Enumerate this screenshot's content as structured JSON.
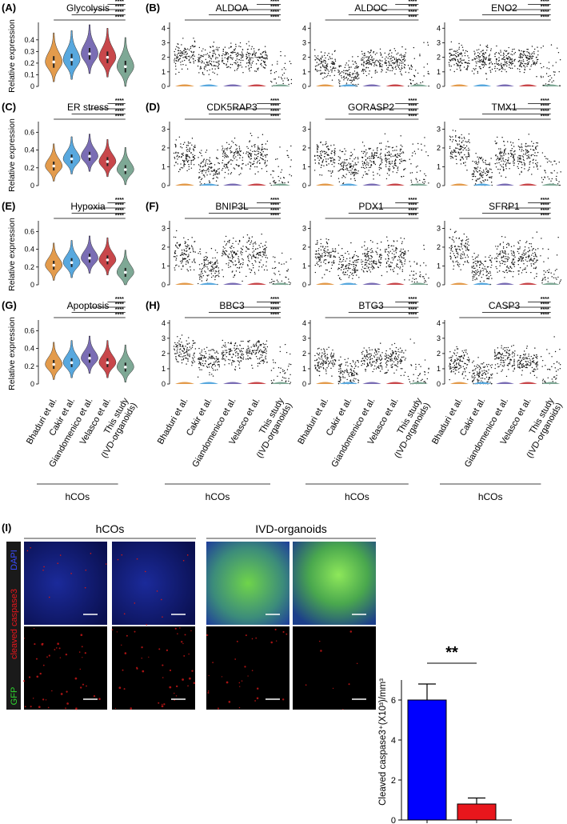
{
  "figure": {
    "colors": [
      "#e39b4c",
      "#58a8de",
      "#7a6db4",
      "#c8474b",
      "#7ea895"
    ],
    "groups": [
      [
        "Bhaduri et al."
      ],
      [
        "Cakir et al."
      ],
      [
        "Giandomenico et al."
      ],
      [
        "Velasco et al."
      ],
      [
        "This study",
        "(IVD-organoids)"
      ]
    ],
    "cohort_label": "hCOs",
    "sig": "****",
    "y_axis_label": "Relative expression",
    "rows": [
      {
        "module": {
          "label": "(A)",
          "title": "Glycolysis",
          "ylim": [
            0,
            0.55
          ],
          "yticks": [
            0,
            0.1,
            0.2,
            0.3,
            0.4
          ],
          "medians": [
            0.21,
            0.23,
            0.28,
            0.25,
            0.17
          ]
        },
        "genes": {
          "label": "(B)",
          "ylim": [
            0,
            4.4
          ],
          "yticks": [
            0,
            1,
            2,
            3,
            4
          ],
          "panels": [
            {
              "title": "ALDOA",
              "medians": [
                2.1,
                1.8,
                2.0,
                1.9,
                0.1
              ]
            },
            {
              "title": "ALDOC",
              "medians": [
                1.5,
                0.9,
                1.6,
                1.7,
                0.1
              ]
            },
            {
              "title": "ENO2",
              "medians": [
                1.9,
                1.8,
                1.8,
                1.9,
                0.3
              ]
            }
          ]
        }
      },
      {
        "module": {
          "label": "(C)",
          "title": "ER stress",
          "ylim": [
            0,
            0.72
          ],
          "yticks": [
            0,
            0.2,
            0.4,
            0.6
          ],
          "medians": [
            0.22,
            0.3,
            0.33,
            0.27,
            0.18
          ]
        },
        "genes": {
          "label": "(D)",
          "ylim": [
            0,
            3.4
          ],
          "yticks": [
            0,
            1,
            2,
            3
          ],
          "panels": [
            {
              "title": "CDK5RAP3",
              "medians": [
                1.6,
                0.9,
                1.5,
                1.6,
                0.3
              ]
            },
            {
              "title": "GORASP2",
              "medians": [
                1.5,
                1.0,
                1.4,
                1.5,
                0.3
              ]
            },
            {
              "title": "TMX1",
              "medians": [
                1.9,
                0.8,
                1.5,
                1.6,
                0.3
              ]
            }
          ]
        }
      },
      {
        "module": {
          "label": "(E)",
          "title": "Hypoxia",
          "ylim": [
            0,
            0.72
          ],
          "yticks": [
            0,
            0.2,
            0.4,
            0.6
          ],
          "medians": [
            0.22,
            0.25,
            0.3,
            0.28,
            0.14
          ]
        },
        "genes": {
          "label": "(F)",
          "ylim": [
            0,
            3.4
          ],
          "yticks": [
            0,
            1,
            2,
            3
          ],
          "panels": [
            {
              "title": "BNIP3L",
              "medians": [
                1.6,
                0.9,
                1.5,
                1.6,
                0.3
              ]
            },
            {
              "title": "PDX1",
              "medians": [
                1.6,
                1.0,
                1.4,
                1.5,
                0.3
              ]
            },
            {
              "title": "SFRP1",
              "medians": [
                1.8,
                0.8,
                1.5,
                1.5,
                0.3
              ]
            }
          ]
        }
      },
      {
        "module": {
          "label": "(G)",
          "title": "Apoptosis",
          "ylim": [
            0,
            0.72
          ],
          "yticks": [
            0,
            0.2,
            0.4,
            0.6
          ],
          "medians": [
            0.22,
            0.24,
            0.29,
            0.24,
            0.19
          ]
        },
        "genes": {
          "label": "(H)",
          "ylim": [
            0,
            4.2
          ],
          "yticks": [
            0,
            1,
            2,
            3,
            4
          ],
          "panels": [
            {
              "title": "BBC3",
              "medians": [
                2.1,
                1.6,
                2.0,
                2.1,
                0.4
              ]
            },
            {
              "title": "BTG3",
              "medians": [
                1.5,
                0.8,
                1.6,
                1.6,
                0.1
              ]
            },
            {
              "title": "CASP3",
              "medians": [
                1.4,
                0.6,
                1.7,
                1.4,
                0.2
              ]
            }
          ]
        }
      }
    ],
    "panel_i": {
      "label": "(I)",
      "groups": [
        "hCOs",
        "IVD-organoids"
      ],
      "channels": [
        "DAPI",
        "cleaved caspase3",
        "GFP"
      ],
      "chart": {
        "type": "bar",
        "ylabel": "Cleaved caspase3⁺(X10³)/mm³",
        "values": [
          6.0,
          0.8
        ],
        "errors": [
          0.8,
          0.3
        ],
        "colors": [
          "#0000ff",
          "#e8161c"
        ],
        "ylim": [
          0,
          7
        ],
        "yticks": [
          0,
          2,
          4,
          6
        ],
        "sig": "**"
      }
    }
  }
}
